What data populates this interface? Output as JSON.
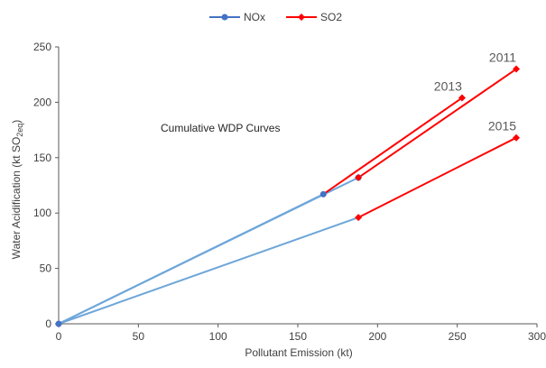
{
  "chart_data": {
    "type": "line",
    "title": "",
    "note": "Cumulative WDP Curves",
    "xlabel": "Pollutant Emission (kt)",
    "ylabel_parts": [
      "Water Acidification (kt SO",
      "2eq",
      ")"
    ],
    "xlim": [
      0,
      300
    ],
    "ylim": [
      0,
      250
    ],
    "x_ticks": [
      0,
      50,
      100,
      150,
      200,
      250,
      300
    ],
    "y_ticks": [
      0,
      50,
      100,
      150,
      200,
      250
    ],
    "grid": false,
    "legend_position": "top-center",
    "series": [
      {
        "name": "NOx",
        "color": "#4472c4",
        "line_color": "#6ea6d9",
        "marker": "circle",
        "segments": [
          [
            [
              0,
              0
            ],
            [
              188,
              96
            ]
          ],
          [
            [
              0,
              0
            ],
            [
              166,
              117
            ]
          ],
          [
            [
              0,
              0
            ],
            [
              188,
              132
            ]
          ]
        ],
        "markers": [
          [
            0,
            0
          ],
          [
            166,
            117
          ],
          [
            188,
            132
          ]
        ]
      },
      {
        "name": "SO2",
        "color": "#ff0000",
        "marker": "diamond",
        "segments": [
          [
            [
              188,
              96
            ],
            [
              287,
              168
            ]
          ],
          [
            [
              166,
              117
            ],
            [
              253,
              204
            ]
          ],
          [
            [
              188,
              132
            ],
            [
              287,
              230
            ]
          ]
        ],
        "markers": [
          [
            188,
            96
          ],
          [
            287,
            168
          ],
          [
            253,
            204
          ],
          [
            188,
            132
          ],
          [
            287,
            230
          ]
        ]
      }
    ],
    "annotations": [
      {
        "text": "2011",
        "x": 287,
        "y": 230
      },
      {
        "text": "2013",
        "x": 253,
        "y": 204
      },
      {
        "text": "2015",
        "x": 287,
        "y": 168
      }
    ]
  }
}
